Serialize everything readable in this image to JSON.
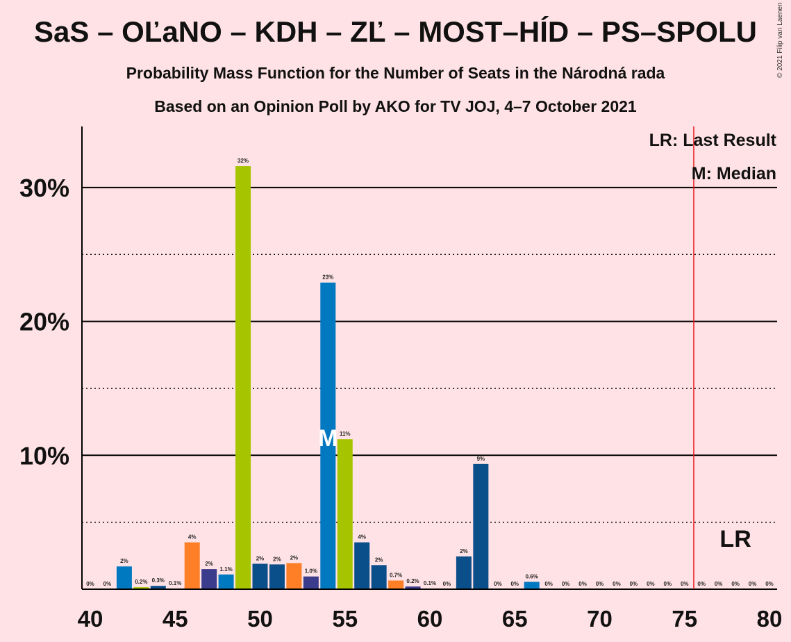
{
  "title": "SaS – OĽaNO – KDH – ZĽ – MOST–HÍD – PS–SPOLU",
  "subtitle1": "Probability Mass Function for the Number of Seats in the Národná rada",
  "subtitle2": "Based on an Opinion Poll by AKO for TV JOJ, 4–7 October 2021",
  "copyright": "© 2021 Filip van Laenen",
  "legend": {
    "lr": "LR: Last Result",
    "median": "M: Median"
  },
  "markers": {
    "median_label": "M",
    "median_seat": 54,
    "lr_label": "LR",
    "last_result_seat": 76
  },
  "chart_data": {
    "type": "bar",
    "xlim": [
      40,
      80
    ],
    "ylim": [
      0,
      34.5
    ],
    "x_ticks": [
      40,
      45,
      50,
      55,
      60,
      65,
      70,
      75,
      80
    ],
    "y_ticks": [
      {
        "value": 10,
        "label": "10%"
      },
      {
        "value": 20,
        "label": "20%"
      },
      {
        "value": 30,
        "label": "30%"
      }
    ],
    "y_minor_ticks": [
      5,
      15,
      25
    ],
    "grid": true,
    "legend_position": "top-right",
    "bars": [
      {
        "x": 40,
        "value": 0,
        "label": "0%",
        "color": "#0079C1"
      },
      {
        "x": 41,
        "value": 0,
        "label": "0%",
        "color": "#0079C1"
      },
      {
        "x": 42,
        "value": 1.7,
        "label": "2%",
        "color": "#0079C1"
      },
      {
        "x": 43,
        "value": 0.15,
        "label": "0.2%",
        "color": "#A6C500"
      },
      {
        "x": 44,
        "value": 0.25,
        "label": "0.3%",
        "color": "#0B4F8A"
      },
      {
        "x": 45,
        "value": 0.05,
        "label": "0.1%",
        "color": "#0079C1"
      },
      {
        "x": 46,
        "value": 3.5,
        "label": "4%",
        "color": "#FF7F27"
      },
      {
        "x": 47,
        "value": 1.5,
        "label": "2%",
        "color": "#3C3C8C"
      },
      {
        "x": 48,
        "value": 1.1,
        "label": "1.1%",
        "color": "#0079C1"
      },
      {
        "x": 49,
        "value": 31.6,
        "label": "32%",
        "color": "#A6C500"
      },
      {
        "x": 50,
        "value": 1.9,
        "label": "2%",
        "color": "#0B4F8A"
      },
      {
        "x": 51,
        "value": 1.85,
        "label": "2%",
        "color": "#0B4F8A"
      },
      {
        "x": 52,
        "value": 1.95,
        "label": "2%",
        "color": "#FF7F27"
      },
      {
        "x": 53,
        "value": 0.95,
        "label": "1.0%",
        "color": "#3C3C8C"
      },
      {
        "x": 54,
        "value": 22.9,
        "label": "23%",
        "color": "#0079C1"
      },
      {
        "x": 55,
        "value": 11.2,
        "label": "11%",
        "color": "#A6C500"
      },
      {
        "x": 56,
        "value": 3.5,
        "label": "4%",
        "color": "#0B4F8A"
      },
      {
        "x": 57,
        "value": 1.8,
        "label": "2%",
        "color": "#0B4F8A"
      },
      {
        "x": 58,
        "value": 0.65,
        "label": "0.7%",
        "color": "#FF7F27"
      },
      {
        "x": 59,
        "value": 0.2,
        "label": "0.2%",
        "color": "#3C3C8C"
      },
      {
        "x": 60,
        "value": 0.05,
        "label": "0.1%",
        "color": "#0079C1"
      },
      {
        "x": 61,
        "value": 0,
        "label": "0%",
        "color": "#0079C1"
      },
      {
        "x": 62,
        "value": 2.45,
        "label": "2%",
        "color": "#0B4F8A"
      },
      {
        "x": 63,
        "value": 9.35,
        "label": "9%",
        "color": "#0B4F8A"
      },
      {
        "x": 64,
        "value": 0,
        "label": "0%",
        "color": "#0079C1"
      },
      {
        "x": 65,
        "value": 0,
        "label": "0%",
        "color": "#0079C1"
      },
      {
        "x": 66,
        "value": 0.55,
        "label": "0.6%",
        "color": "#0079C1"
      },
      {
        "x": 67,
        "value": 0,
        "label": "0%",
        "color": "#0079C1"
      },
      {
        "x": 68,
        "value": 0,
        "label": "0%",
        "color": "#0079C1"
      },
      {
        "x": 69,
        "value": 0,
        "label": "0%",
        "color": "#0079C1"
      },
      {
        "x": 70,
        "value": 0,
        "label": "0%",
        "color": "#0079C1"
      },
      {
        "x": 71,
        "value": 0,
        "label": "0%",
        "color": "#0079C1"
      },
      {
        "x": 72,
        "value": 0,
        "label": "0%",
        "color": "#0079C1"
      },
      {
        "x": 73,
        "value": 0,
        "label": "0%",
        "color": "#0079C1"
      },
      {
        "x": 74,
        "value": 0,
        "label": "0%",
        "color": "#0079C1"
      },
      {
        "x": 75,
        "value": 0,
        "label": "0%",
        "color": "#0079C1"
      },
      {
        "x": 76,
        "value": 0,
        "label": "0%",
        "color": "#0079C1"
      },
      {
        "x": 77,
        "value": 0,
        "label": "0%",
        "color": "#0079C1"
      },
      {
        "x": 78,
        "value": 0,
        "label": "0%",
        "color": "#0079C1"
      },
      {
        "x": 79,
        "value": 0,
        "label": "0%",
        "color": "#0079C1"
      },
      {
        "x": 80,
        "value": 0,
        "label": "0%",
        "color": "#0079C1"
      }
    ],
    "colors": {
      "background": "#FFE2E5",
      "last_result_line": "#E8161B",
      "axis": "#000000"
    }
  }
}
